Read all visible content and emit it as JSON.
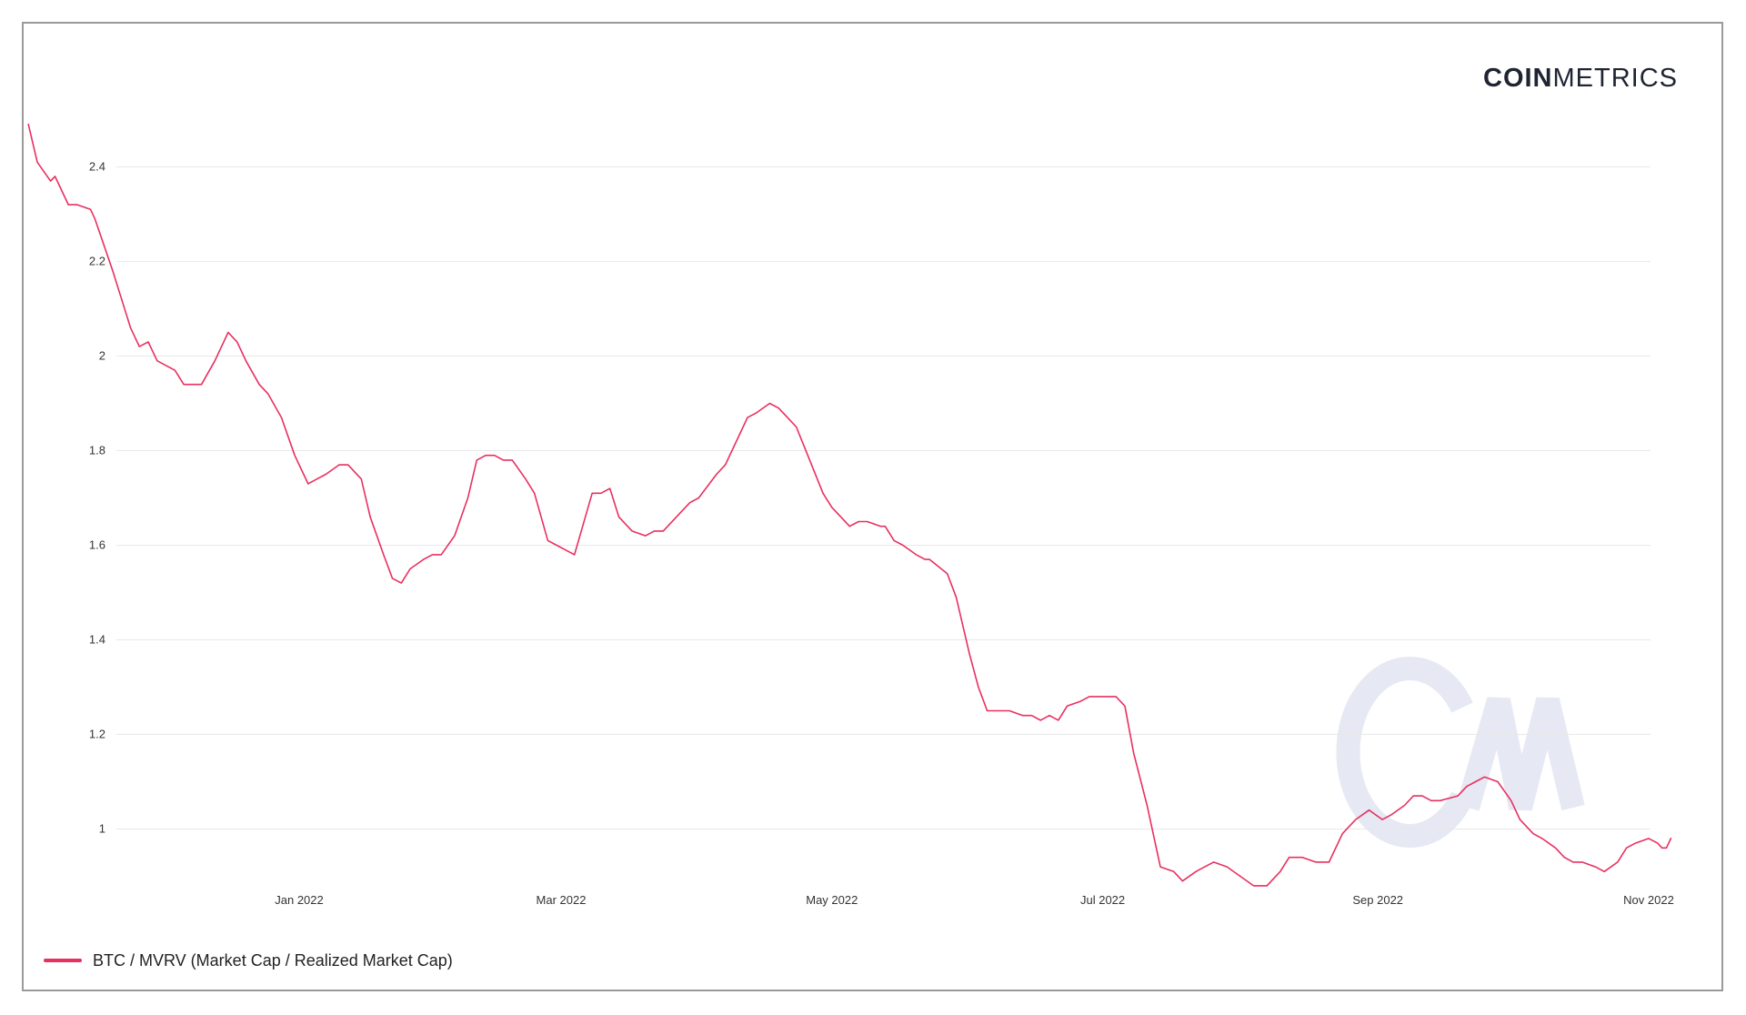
{
  "brand": {
    "strong": "COIN",
    "light": "METRICS",
    "watermark": "CM"
  },
  "colors": {
    "line": "#e8305f",
    "watermark": "#e6e8f3",
    "grid": "#e8e8e8"
  },
  "chart_data": {
    "type": "line",
    "title": "",
    "xlabel": "",
    "ylabel": "",
    "x_range": [
      "2021-11-01",
      "2022-11-06"
    ],
    "ylim": [
      0.85,
      2.55
    ],
    "y_ticks": [
      {
        "value": 1.0,
        "label": "1"
      },
      {
        "value": 1.2,
        "label": "1.2"
      },
      {
        "value": 1.4,
        "label": "1.4"
      },
      {
        "value": 1.6,
        "label": "1.6"
      },
      {
        "value": 1.8,
        "label": "1.8"
      },
      {
        "value": 2.0,
        "label": "2"
      },
      {
        "value": 2.2,
        "label": "2.2"
      },
      {
        "value": 2.4,
        "label": "2.4"
      }
    ],
    "x_ticks": [
      {
        "date": "2022-01-01",
        "label": "Jan 2022"
      },
      {
        "date": "2022-03-01",
        "label": "Mar 2022"
      },
      {
        "date": "2022-05-01",
        "label": "May 2022"
      },
      {
        "date": "2022-07-01",
        "label": "Jul 2022"
      },
      {
        "date": "2022-09-01",
        "label": "Sep 2022"
      },
      {
        "date": "2022-11-01",
        "label": "Nov 2022"
      }
    ],
    "grid": true,
    "legend_position": "bottom-left",
    "series": [
      {
        "name": "BTC / MVRV (Market Cap / Realized Market Cap)",
        "color": "#e8305f",
        "points": [
          [
            "2021-11-01",
            2.49
          ],
          [
            "2021-11-03",
            2.41
          ],
          [
            "2021-11-06",
            2.37
          ],
          [
            "2021-11-07",
            2.38
          ],
          [
            "2021-11-10",
            2.32
          ],
          [
            "2021-11-12",
            2.32
          ],
          [
            "2021-11-15",
            2.31
          ],
          [
            "2021-11-16",
            2.29
          ],
          [
            "2021-11-20",
            2.18
          ],
          [
            "2021-11-24",
            2.06
          ],
          [
            "2021-11-26",
            2.02
          ],
          [
            "2021-11-28",
            2.03
          ],
          [
            "2021-11-30",
            1.99
          ],
          [
            "2021-12-02",
            1.98
          ],
          [
            "2021-12-04",
            1.97
          ],
          [
            "2021-12-06",
            1.94
          ],
          [
            "2021-12-08",
            1.94
          ],
          [
            "2021-12-10",
            1.94
          ],
          [
            "2021-12-13",
            1.99
          ],
          [
            "2021-12-16",
            2.05
          ],
          [
            "2021-12-18",
            2.03
          ],
          [
            "2021-12-20",
            1.99
          ],
          [
            "2021-12-23",
            1.94
          ],
          [
            "2021-12-25",
            1.92
          ],
          [
            "2021-12-28",
            1.87
          ],
          [
            "2021-12-31",
            1.79
          ],
          [
            "2022-01-03",
            1.73
          ],
          [
            "2022-01-05",
            1.74
          ],
          [
            "2022-01-07",
            1.75
          ],
          [
            "2022-01-10",
            1.77
          ],
          [
            "2022-01-12",
            1.77
          ],
          [
            "2022-01-15",
            1.74
          ],
          [
            "2022-01-17",
            1.66
          ],
          [
            "2022-01-20",
            1.58
          ],
          [
            "2022-01-22",
            1.53
          ],
          [
            "2022-01-24",
            1.52
          ],
          [
            "2022-01-26",
            1.55
          ],
          [
            "2022-01-29",
            1.57
          ],
          [
            "2022-01-31",
            1.58
          ],
          [
            "2022-02-02",
            1.58
          ],
          [
            "2022-02-05",
            1.62
          ],
          [
            "2022-02-08",
            1.7
          ],
          [
            "2022-02-10",
            1.78
          ],
          [
            "2022-02-12",
            1.79
          ],
          [
            "2022-02-14",
            1.79
          ],
          [
            "2022-02-16",
            1.78
          ],
          [
            "2022-02-18",
            1.78
          ],
          [
            "2022-02-21",
            1.74
          ],
          [
            "2022-02-23",
            1.71
          ],
          [
            "2022-02-26",
            1.61
          ],
          [
            "2022-02-28",
            1.6
          ],
          [
            "2022-03-02",
            1.59
          ],
          [
            "2022-03-04",
            1.58
          ],
          [
            "2022-03-08",
            1.71
          ],
          [
            "2022-03-10",
            1.71
          ],
          [
            "2022-03-12",
            1.72
          ],
          [
            "2022-03-14",
            1.66
          ],
          [
            "2022-03-17",
            1.63
          ],
          [
            "2022-03-20",
            1.62
          ],
          [
            "2022-03-22",
            1.63
          ],
          [
            "2022-03-24",
            1.63
          ],
          [
            "2022-03-27",
            1.66
          ],
          [
            "2022-03-30",
            1.69
          ],
          [
            "2022-04-01",
            1.7
          ],
          [
            "2022-04-05",
            1.75
          ],
          [
            "2022-04-07",
            1.77
          ],
          [
            "2022-04-12",
            1.87
          ],
          [
            "2022-04-14",
            1.88
          ],
          [
            "2022-04-17",
            1.9
          ],
          [
            "2022-04-19",
            1.89
          ],
          [
            "2022-04-21",
            1.87
          ],
          [
            "2022-04-23",
            1.85
          ],
          [
            "2022-04-26",
            1.78
          ],
          [
            "2022-04-29",
            1.71
          ],
          [
            "2022-05-01",
            1.68
          ],
          [
            "2022-05-03",
            1.66
          ],
          [
            "2022-05-05",
            1.64
          ],
          [
            "2022-05-07",
            1.65
          ],
          [
            "2022-05-09",
            1.65
          ],
          [
            "2022-05-12",
            1.64
          ],
          [
            "2022-05-13",
            1.64
          ],
          [
            "2022-05-15",
            1.61
          ],
          [
            "2022-05-17",
            1.6
          ],
          [
            "2022-05-20",
            1.58
          ],
          [
            "2022-05-22",
            1.57
          ],
          [
            "2022-05-23",
            1.57
          ],
          [
            "2022-05-27",
            1.54
          ],
          [
            "2022-05-29",
            1.49
          ],
          [
            "2022-06-01",
            1.37
          ],
          [
            "2022-06-03",
            1.3
          ],
          [
            "2022-06-05",
            1.25
          ],
          [
            "2022-06-07",
            1.25
          ],
          [
            "2022-06-08",
            1.25
          ],
          [
            "2022-06-10",
            1.25
          ],
          [
            "2022-06-13",
            1.24
          ],
          [
            "2022-06-15",
            1.24
          ],
          [
            "2022-06-17",
            1.23
          ],
          [
            "2022-06-19",
            1.24
          ],
          [
            "2022-06-21",
            1.23
          ],
          [
            "2022-06-23",
            1.26
          ],
          [
            "2022-06-26",
            1.27
          ],
          [
            "2022-06-28",
            1.28
          ],
          [
            "2022-07-01",
            1.28
          ],
          [
            "2022-07-04",
            1.28
          ],
          [
            "2022-07-06",
            1.26
          ],
          [
            "2022-07-08",
            1.16
          ],
          [
            "2022-07-11",
            1.05
          ],
          [
            "2022-07-14",
            0.92
          ],
          [
            "2022-07-17",
            0.91
          ],
          [
            "2022-07-19",
            0.89
          ],
          [
            "2022-07-22",
            0.91
          ],
          [
            "2022-07-24",
            0.92
          ],
          [
            "2022-07-26",
            0.93
          ],
          [
            "2022-07-29",
            0.92
          ],
          [
            "2022-08-01",
            0.9
          ],
          [
            "2022-08-04",
            0.88
          ],
          [
            "2022-08-07",
            0.88
          ],
          [
            "2022-08-10",
            0.91
          ],
          [
            "2022-08-12",
            0.94
          ],
          [
            "2022-08-15",
            0.94
          ],
          [
            "2022-08-18",
            0.93
          ],
          [
            "2022-08-21",
            0.93
          ],
          [
            "2022-08-24",
            0.99
          ],
          [
            "2022-08-27",
            1.02
          ],
          [
            "2022-08-30",
            1.04
          ],
          [
            "2022-09-02",
            1.02
          ],
          [
            "2022-09-04",
            1.03
          ],
          [
            "2022-09-07",
            1.05
          ],
          [
            "2022-09-09",
            1.07
          ],
          [
            "2022-09-11",
            1.07
          ],
          [
            "2022-09-13",
            1.06
          ],
          [
            "2022-09-15",
            1.06
          ],
          [
            "2022-09-19",
            1.07
          ],
          [
            "2022-09-21",
            1.09
          ],
          [
            "2022-09-23",
            1.1
          ],
          [
            "2022-09-25",
            1.11
          ],
          [
            "2022-09-28",
            1.1
          ],
          [
            "2022-10-01",
            1.06
          ],
          [
            "2022-10-03",
            1.02
          ],
          [
            "2022-10-06",
            0.99
          ],
          [
            "2022-10-08",
            0.98
          ],
          [
            "2022-10-11",
            0.96
          ],
          [
            "2022-10-13",
            0.94
          ],
          [
            "2022-10-15",
            0.93
          ],
          [
            "2022-10-17",
            0.93
          ],
          [
            "2022-10-20",
            0.92
          ],
          [
            "2022-10-22",
            0.91
          ],
          [
            "2022-10-25",
            0.93
          ],
          [
            "2022-10-27",
            0.96
          ],
          [
            "2022-10-29",
            0.97
          ],
          [
            "2022-11-01",
            0.98
          ],
          [
            "2022-11-03",
            0.97
          ],
          [
            "2022-11-04",
            0.96
          ],
          [
            "2022-11-05",
            0.96
          ],
          [
            "2022-11-06",
            0.98
          ]
        ]
      }
    ]
  }
}
